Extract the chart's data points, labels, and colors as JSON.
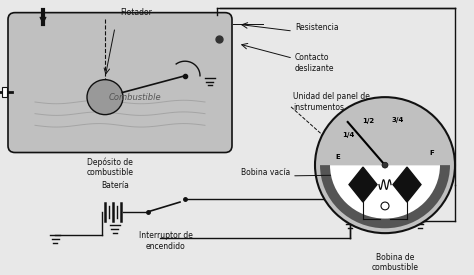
{
  "bg_color": "#e8e8e8",
  "tank_color": "#c0c0c0",
  "gauge_color": "#c0c0c0",
  "gauge_dark": "#555555",
  "line_color": "#111111",
  "text_color": "#111111",
  "labels": {
    "flotador": "Flotador",
    "resistencia": "Resistencia",
    "contacto": "Contacto\ndeslizante",
    "unidad": "Unidad del panel de\ninstrumentos",
    "combustible_tank": "Combustible",
    "deposito": "Depósito de\ncombustible",
    "bateria": "Batería",
    "bobina_vacia": "Bobina vacía",
    "interruptor": "Interruptor de\nencendido",
    "bobina_combustible": "Bobina de\ncombustible"
  },
  "gauge_labels": [
    "E",
    "1/4",
    "1/2",
    "3/4",
    "F"
  ],
  "gauge_angles": [
    170,
    140,
    110,
    75,
    15
  ]
}
